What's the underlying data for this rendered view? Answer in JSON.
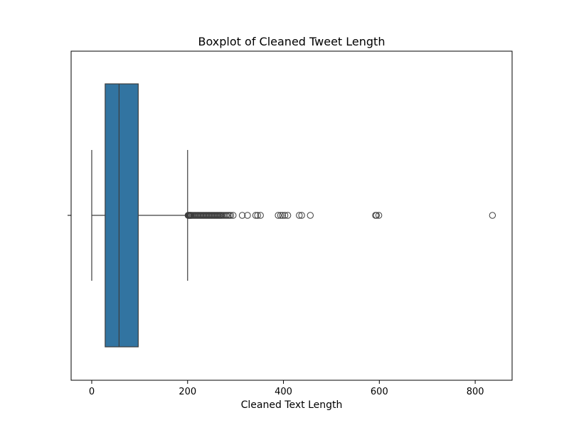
{
  "chart_data": {
    "type": "boxplot",
    "title": "Boxplot of Cleaned Tweet Length",
    "xlabel": "Cleaned Text Length",
    "ylabel": "",
    "xlim": [
      -43,
      877
    ],
    "xticks": [
      0,
      200,
      400,
      600,
      800
    ],
    "orientation": "horizontal",
    "grid": false,
    "box": {
      "whisker_low": 0,
      "q1": 28,
      "median": 57,
      "q3": 97,
      "whisker_high": 200
    },
    "outliers": [
      201,
      202,
      203,
      204,
      205,
      206,
      207,
      208,
      210,
      212,
      214,
      216,
      218,
      220,
      222,
      224,
      226,
      228,
      230,
      232,
      234,
      236,
      238,
      240,
      242,
      244,
      246,
      248,
      250,
      252,
      254,
      256,
      258,
      260,
      262,
      264,
      266,
      268,
      270,
      272,
      275,
      278,
      281,
      284,
      287,
      290,
      295,
      314,
      325,
      342,
      346,
      352,
      389,
      394,
      398,
      403,
      409,
      433,
      438,
      456,
      592,
      594,
      599,
      836
    ],
    "colors": {
      "box_fill": "#3274a1",
      "box_edge": "#3d3d3d",
      "outlier_edge": "#3d3d3d"
    }
  }
}
